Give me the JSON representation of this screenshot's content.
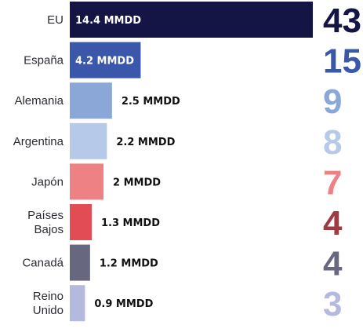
{
  "chart_data": {
    "type": "bar",
    "orientation": "horizontal",
    "title": "",
    "xlabel": "",
    "ylabel": "",
    "unit": "MMDD",
    "xlim": [
      0,
      14.4
    ],
    "grid": false,
    "categories": [
      [
        "EU"
      ],
      [
        "España"
      ],
      [
        "Alemania"
      ],
      [
        "Argentina"
      ],
      [
        "Japón"
      ],
      [
        "Países",
        "Bajos"
      ],
      [
        "Canadá"
      ],
      [
        "Reino",
        "Unido"
      ]
    ],
    "values": [
      14.4,
      4.2,
      2.5,
      2.2,
      2,
      1.3,
      1.2,
      0.9
    ],
    "value_labels": [
      "14.4 MMDD",
      "4.2 MMDD",
      "2.5 MMDD",
      "2.2 MMDD",
      "2 MMDD",
      "1.3 MMDD",
      "1.2 MMDD",
      "0.9 MMDD"
    ],
    "percent_labels": [
      "43",
      "15",
      "9",
      "8",
      "7",
      "4",
      "4",
      "3"
    ],
    "bar_colors": [
      "#141544",
      "#3b57a9",
      "#8aa7d8",
      "#b6c9e8",
      "#ee8184",
      "#e14c55",
      "#67677f",
      "#b4b9de"
    ],
    "percent_colors": [
      "#141544",
      "#3b57a9",
      "#8aa7d8",
      "#b6c9e8",
      "#ee8184",
      "#a03a42",
      "#67677f",
      "#b4b9de"
    ],
    "value_label_inside": [
      true,
      true,
      false,
      false,
      false,
      false,
      false,
      false
    ]
  }
}
